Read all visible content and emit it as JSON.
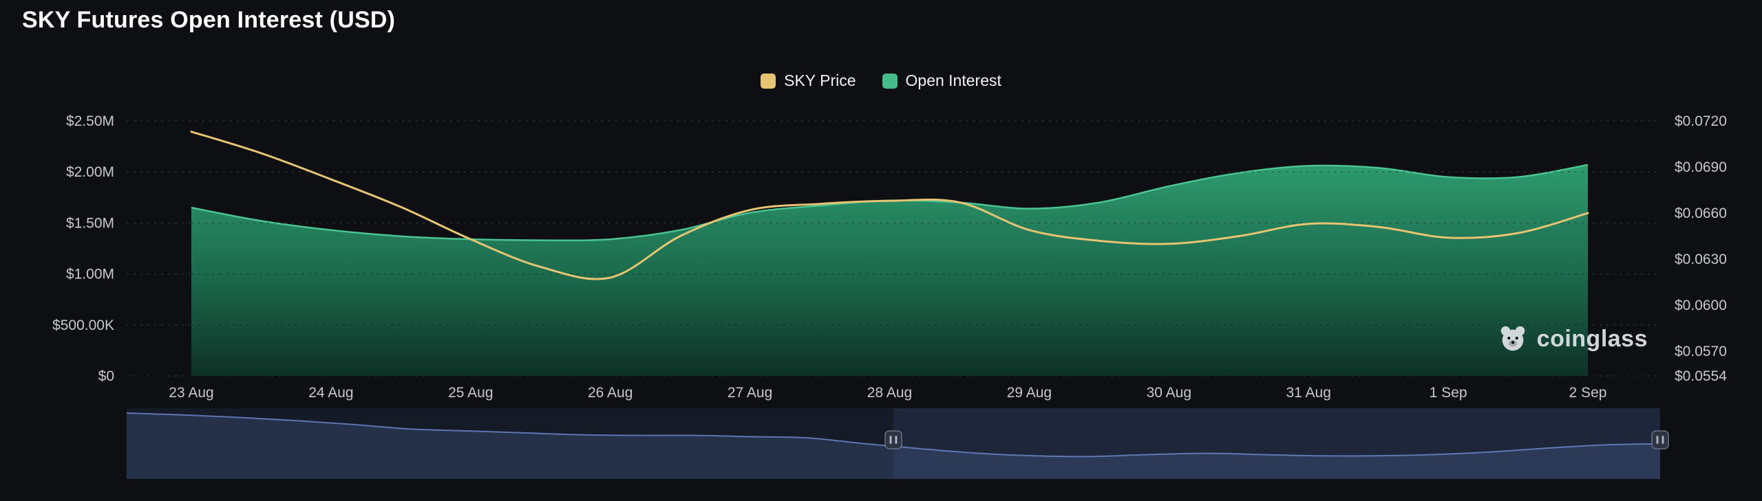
{
  "watermark": {
    "label": "coinglass"
  },
  "chart_data": {
    "type": "area",
    "title": "SKY Futures Open Interest (USD)",
    "legend": [
      {
        "label": "SKY Price",
        "color": "#e6c472"
      },
      {
        "label": "Open Interest",
        "color": "#45bd8b"
      }
    ],
    "x_categories": [
      "23 Aug",
      "24 Aug",
      "25 Aug",
      "26 Aug",
      "27 Aug",
      "28 Aug",
      "29 Aug",
      "30 Aug",
      "31 Aug",
      "1 Sep",
      "2 Sep"
    ],
    "left_axis": {
      "ticks": [
        "$2.50M",
        "$2.00M",
        "$1.50M",
        "$1.00M",
        "$500.00K",
        "$0"
      ],
      "min": 0,
      "max": 2500000
    },
    "right_axis": {
      "tick_labels": [
        "$0.0720",
        "$0.0690",
        "$0.0660",
        "$0.0630",
        "$0.0600",
        "$0.0570",
        "$0.0554"
      ],
      "tick_values": [
        0.072,
        0.069,
        0.066,
        0.063,
        0.06,
        0.057,
        0.0554
      ],
      "min": 0.0554,
      "max": 0.072
    },
    "series": [
      {
        "name": "SKY Price",
        "type": "line",
        "axis": "right",
        "color": "#e6c472",
        "values": [
          0.0713,
          0.0699,
          0.0682,
          0.0664,
          0.0643,
          0.0625,
          0.0618,
          0.0645,
          0.0662,
          0.0666,
          0.0668,
          0.0667,
          0.0649,
          0.0642,
          0.064,
          0.0645,
          0.0653,
          0.0651,
          0.0644,
          0.0647,
          0.066
        ]
      },
      {
        "name": "Open Interest",
        "type": "area",
        "axis": "left",
        "color": "#45bd8b",
        "line_color": "#4ac492",
        "fill_top": "#2fa273",
        "fill_mid": "#1c6f50",
        "fill_bottom": "#0e3428",
        "values": [
          1650000,
          1520000,
          1430000,
          1370000,
          1340000,
          1330000,
          1340000,
          1430000,
          1600000,
          1670000,
          1720000,
          1700000,
          1640000,
          1700000,
          1860000,
          1990000,
          2060000,
          2040000,
          1950000,
          1950000,
          2070000
        ]
      }
    ],
    "navigator": {
      "bg_color": "#151a27",
      "fill_color": "rgba(64,84,130,0.38)",
      "line_color": "#5d75b0",
      "selected_tint": "rgba(120,150,220,0.10)",
      "handle_fill": "#2e3442",
      "handle_border": "#6b7387",
      "handle_bar": "#aab2c2",
      "selection_start": 0.5,
      "selection_end": 1.0,
      "values": [
        1.0,
        0.97,
        0.93,
        0.88,
        0.82,
        0.75,
        0.72,
        0.69,
        0.66,
        0.65,
        0.65,
        0.63,
        0.61,
        0.52,
        0.44,
        0.37,
        0.33,
        0.32,
        0.35,
        0.37,
        0.35,
        0.33,
        0.33,
        0.35,
        0.39,
        0.45,
        0.5,
        0.52
      ]
    },
    "colors": {
      "background": "#0d0f12",
      "grid": "rgba(255,255,255,0.12)",
      "grid_overlay": "rgba(8,12,10,0.35)",
      "axis_text": "#c6c9ce",
      "title_text": "#ffffff"
    }
  }
}
